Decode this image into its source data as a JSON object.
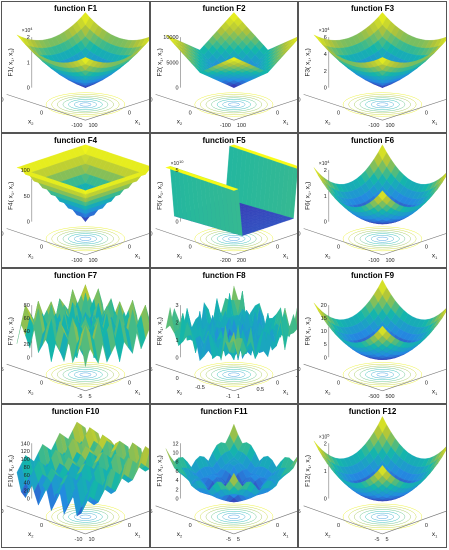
{
  "chart_data": [
    {
      "type": "surface3d",
      "title": "function F1",
      "zlabel_main": "F1",
      "zlabel_sub": "( x",
      "zlabel_tail": ", x",
      "ztick_exp": "4",
      "xlabel": "x",
      "ylabel": "x",
      "x_ticks": [
        "100",
        "0",
        "-100"
      ],
      "y_ticks": [
        "100",
        "0",
        "-100"
      ],
      "z_ticks": [
        "0",
        "1",
        "2"
      ],
      "shape": "bowl_pyramid",
      "colormap": "parula"
    },
    {
      "type": "surface3d",
      "title": "function F2",
      "zlabel_main": "F2",
      "zlabel_sub": "( x",
      "zlabel_tail": ", x",
      "ztick_exp": "",
      "xlabel": "x",
      "ylabel": "x",
      "x_ticks": [
        "100",
        "0",
        "-100"
      ],
      "y_ticks": [
        "100",
        "0",
        "-100"
      ],
      "z_ticks": [
        "0",
        "5000",
        "10000"
      ],
      "shape": "pyramid",
      "colormap": "parula"
    },
    {
      "type": "surface3d",
      "title": "function F3",
      "zlabel_main": "F3",
      "zlabel_sub": "( x",
      "zlabel_tail": ", x",
      "ztick_exp": "4",
      "xlabel": "x",
      "ylabel": "x",
      "x_ticks": [
        "100",
        "0",
        "-100"
      ],
      "y_ticks": [
        "100",
        "0",
        "-100"
      ],
      "z_ticks": [
        "0",
        "2",
        "4",
        "6"
      ],
      "shape": "bowl_pyramid",
      "colormap": "parula"
    },
    {
      "type": "surface3d",
      "title": "function F4",
      "zlabel_main": "F4",
      "zlabel_sub": "( x",
      "zlabel_tail": ", x",
      "ztick_exp": "",
      "xlabel": "x",
      "ylabel": "x",
      "x_ticks": [
        "100",
        "0",
        "-100"
      ],
      "y_ticks": [
        "100",
        "0",
        "-100"
      ],
      "z_ticks": [
        "0",
        "50",
        "100"
      ],
      "shape": "inverted_pyramid",
      "colormap": "parula"
    },
    {
      "type": "surface3d",
      "title": "function F5",
      "zlabel_main": "F5",
      "zlabel_sub": "( x",
      "zlabel_tail": ", x",
      "ztick_exp": "10",
      "xlabel": "x",
      "ylabel": "x",
      "x_ticks": [
        "200",
        "0",
        "-200"
      ],
      "y_ticks": [
        "200",
        "0",
        "-200"
      ],
      "z_ticks": [
        "0",
        "5"
      ],
      "shape": "valley",
      "colormap": "parula"
    },
    {
      "type": "surface3d",
      "title": "function F6",
      "zlabel_main": "F6",
      "zlabel_sub": "( x",
      "zlabel_tail": ", x",
      "ztick_exp": "4",
      "xlabel": "x",
      "ylabel": "x",
      "x_ticks": [
        "100",
        "0",
        "-100"
      ],
      "y_ticks": [
        "100",
        "0",
        "-100"
      ],
      "z_ticks": [
        "0",
        "1",
        "2"
      ],
      "shape": "bowl",
      "colormap": "parula"
    },
    {
      "type": "surface3d",
      "title": "function F7",
      "zlabel_main": "F7",
      "zlabel_sub": "( x",
      "zlabel_tail": ", x",
      "ztick_exp": "",
      "xlabel": "x",
      "ylabel": "x",
      "x_ticks": [
        "5",
        "0",
        "-5"
      ],
      "y_ticks": [
        "5",
        "0",
        "-5"
      ],
      "z_ticks": [
        "0",
        "20",
        "40",
        "60",
        "80"
      ],
      "shape": "rastrigin",
      "colormap": "parula"
    },
    {
      "type": "surface3d",
      "title": "function F8",
      "zlabel_main": "F8",
      "zlabel_sub": "( x",
      "zlabel_tail": ", x",
      "ztick_exp": "",
      "xlabel": "x",
      "ylabel": "x",
      "x_ticks": [
        "1",
        "0.5",
        "0",
        "-0.5",
        "-1"
      ],
      "y_ticks": [
        "0.5",
        "0",
        "-0.5",
        "-1"
      ],
      "z_ticks": [
        "0",
        "1",
        "2",
        "3"
      ],
      "shape": "noisy",
      "colormap": "parula"
    },
    {
      "type": "surface3d",
      "title": "function F9",
      "zlabel_main": "F9",
      "zlabel_sub": "( x",
      "zlabel_tail": ", x",
      "ztick_exp": "",
      "xlabel": "x",
      "ylabel": "x",
      "x_ticks": [
        "500",
        "0",
        "-500"
      ],
      "y_ticks": [
        "500",
        "0",
        "-500"
      ],
      "z_ticks": [
        "0",
        "5",
        "10",
        "15",
        "20"
      ],
      "shape": "bowl",
      "colormap": "parula"
    },
    {
      "type": "surface3d",
      "title": "function F10",
      "zlabel_main": "F10",
      "zlabel_sub": "( x",
      "zlabel_tail": ", x",
      "ztick_exp": "",
      "xlabel": "x",
      "ylabel": "x",
      "x_ticks": [
        "10",
        "0",
        "-10"
      ],
      "y_ticks": [
        "10",
        "0",
        "-10"
      ],
      "z_ticks": [
        "0",
        "20",
        "40",
        "60",
        "80",
        "100",
        "120",
        "140"
      ],
      "shape": "ripple",
      "colormap": "parula"
    },
    {
      "type": "surface3d",
      "title": "function F11",
      "zlabel_main": "F11",
      "zlabel_sub": "( x",
      "zlabel_tail": ", x",
      "ztick_exp": "",
      "xlabel": "x",
      "ylabel": "x",
      "x_ticks": [
        "5",
        "0",
        "-5"
      ],
      "y_ticks": [
        "5",
        "0",
        "-5"
      ],
      "z_ticks": [
        "0",
        "2",
        "4",
        "6",
        "8",
        "10",
        "12"
      ],
      "shape": "griewank",
      "colormap": "parula"
    },
    {
      "type": "surface3d",
      "title": "function F12",
      "zlabel_main": "F12",
      "zlabel_sub": "( x",
      "zlabel_tail": ", x",
      "ztick_exp": "5",
      "xlabel": "x",
      "ylabel": "x",
      "x_ticks": [
        "5",
        "0",
        "-5"
      ],
      "y_ticks": [
        "5",
        "0",
        "-5"
      ],
      "z_ticks": [
        "0",
        "1",
        "2"
      ],
      "shape": "bowl",
      "colormap": "parula"
    }
  ],
  "colors": {
    "border": "#555555",
    "contour": "#4a7fd4",
    "axis": "#777777",
    "text": "#222222"
  }
}
